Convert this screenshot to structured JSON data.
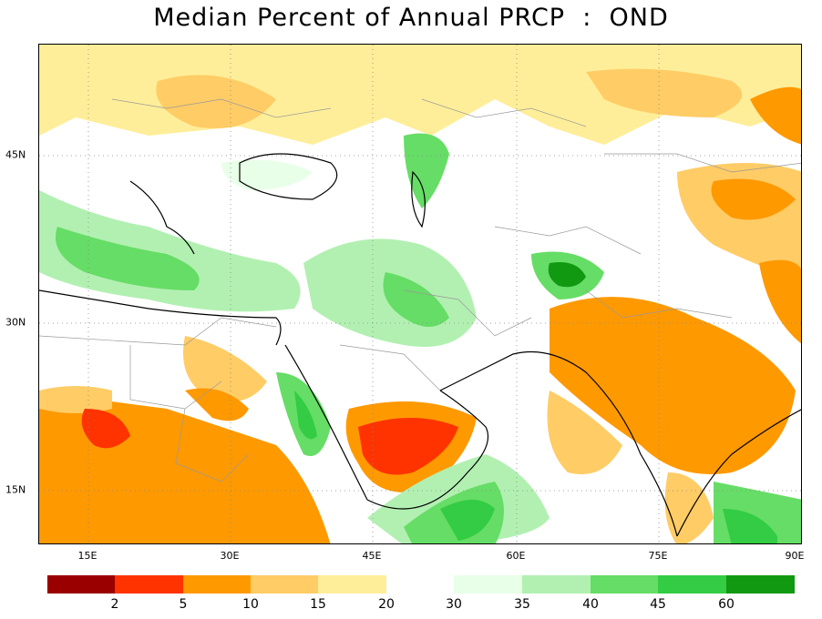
{
  "title": "Median Percent of Annual PRCP  :  OND",
  "x_ticks": [
    "15E",
    "30E",
    "45E",
    "60E",
    "75E",
    "90E"
  ],
  "y_ticks": [
    "45N",
    "30N",
    "15N"
  ],
  "legend": {
    "dry": {
      "colors": [
        "#9b0000",
        "#ff3300",
        "#ff9900",
        "#ffcc66",
        "#ffee99"
      ],
      "labels": [
        "2",
        "5",
        "10",
        "15",
        "20"
      ]
    },
    "wet": {
      "colors": [
        "#e8ffe8",
        "#b2f0b2",
        "#66dd66",
        "#33cc44",
        "#119911"
      ],
      "labels": [
        "30",
        "35",
        "40",
        "45",
        "60"
      ]
    }
  }
}
